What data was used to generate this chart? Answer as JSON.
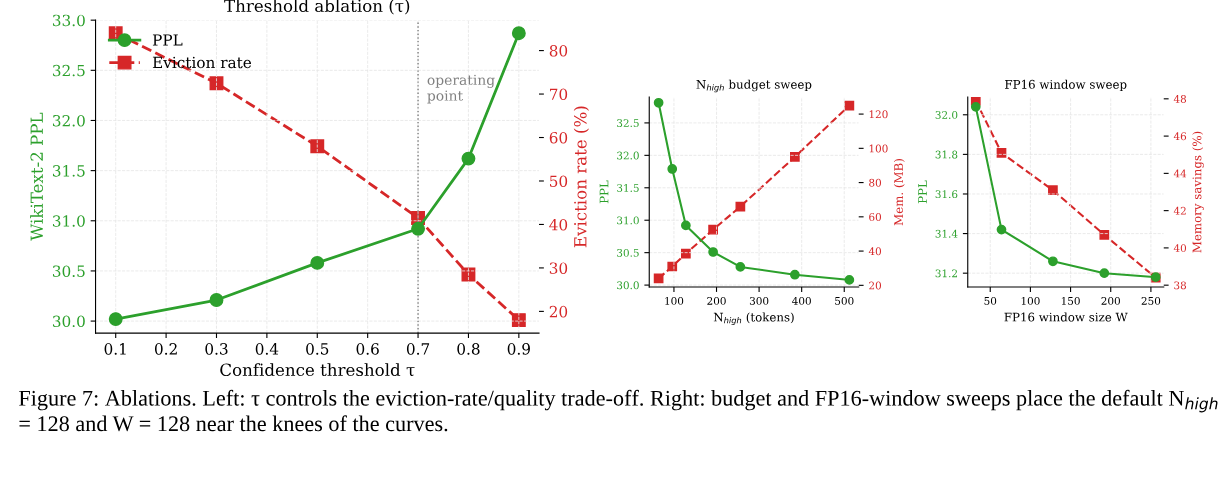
{
  "chart_data": [
    {
      "type": "line",
      "title": "Threshold ablation (τ)",
      "xlabel": "Confidence threshold τ",
      "ylabel": "WikiText-2 PPL",
      "y2label": "Eviction rate (%)",
      "x": [
        0.1,
        0.3,
        0.5,
        0.7,
        0.8,
        0.9
      ],
      "series": [
        {
          "name": "PPL",
          "color": "#2ca02c",
          "values": [
            30.02,
            30.21,
            30.58,
            30.92,
            31.62,
            32.87
          ],
          "marker": "circle",
          "line_style": "solid"
        },
        {
          "name": "Eviction rate",
          "color": "#d62728",
          "values": [
            84,
            72.5,
            58,
            41.5,
            28.5,
            18
          ],
          "axis": "y2",
          "marker": "square",
          "line_style": "dashed"
        }
      ],
      "xlim": [
        0.06,
        0.94
      ],
      "xticks": [
        0.1,
        0.2,
        0.3,
        0.4,
        0.5,
        0.6,
        0.7,
        0.8,
        0.9
      ],
      "ylim": [
        29.88,
        33.0
      ],
      "yticks": [
        {
          "value": 30,
          "label": "30.0"
        },
        30.5,
        {
          "value": 31,
          "label": "31.0"
        },
        31.5,
        {
          "value": 32,
          "label": "32.0"
        },
        32.5,
        {
          "value": 33,
          "label": "33.0"
        }
      ],
      "y2lim": [
        15,
        87
      ],
      "y2ticks": [
        20,
        30,
        40,
        50,
        60,
        70,
        80
      ],
      "ref_lines": [
        {
          "axis": "x",
          "value": 0.7,
          "label": "operating\npoint",
          "color": "#808080",
          "line_style": "dotted"
        }
      ],
      "grid": true,
      "legend": "top left",
      "annotations": [
        "Figure 7: Ablations. Left: τ controls the eviction-rate/quality trade-off. Right: budget and FP16-window sweeps place the default N$_{high}$ = 128 and W = 128 near the knees of the curves."
      ]
    },
    {
      "type": "line",
      "title": "N$_{high}$ budget sweep",
      "xlabel": "N$_{high}$ (tokens)",
      "ylabel": "PPL",
      "y2label": "Mem. (MB)",
      "x": [
        64,
        96,
        128,
        192,
        256,
        384,
        512
      ],
      "series": [
        {
          "color": "#2ca02c",
          "values": [
            32.81,
            31.79,
            30.92,
            30.51,
            30.28,
            30.16,
            30.08
          ],
          "marker": "circle",
          "line_style": "solid"
        },
        {
          "color": "#d62728",
          "values": [
            24,
            31,
            38.5,
            52.5,
            66,
            95,
            125
          ],
          "axis": "y2",
          "marker": "square",
          "line_style": "dashed"
        }
      ],
      "xlim": [
        42,
        534
      ],
      "xticks": [
        100,
        200,
        300,
        400,
        500
      ],
      "ylim": [
        29.97,
        32.9
      ],
      "yticks": [
        {
          "value": 30,
          "label": "30.0"
        },
        30.5,
        {
          "value": 31,
          "label": "31.0"
        },
        31.5,
        {
          "value": 32,
          "label": "32.0"
        },
        32.5
      ],
      "y2lim": [
        19,
        130
      ],
      "y2ticks": [
        20,
        40,
        60,
        80,
        100,
        120
      ],
      "grid": true
    },
    {
      "type": "line",
      "title": "FP16 window sweep",
      "xlabel": "FP16 window size W",
      "ylabel": "PPL",
      "y2label": "Memory savings (%)",
      "x": [
        32,
        64,
        128,
        192,
        256
      ],
      "series": [
        {
          "color": "#2ca02c",
          "values": [
            32.04,
            31.42,
            31.26,
            31.2,
            31.18
          ],
          "marker": "circle",
          "line_style": "solid"
        },
        {
          "color": "#d62728",
          "values": [
            47.9,
            45.1,
            43.1,
            40.7,
            38.4
          ],
          "axis": "y2",
          "marker": "square",
          "line_style": "dashed"
        }
      ],
      "xlim": [
        22,
        266
      ],
      "xticks": [
        50,
        100,
        150,
        200,
        250
      ],
      "ylim": [
        31.13,
        32.09
      ],
      "yticks": [
        31.2,
        31.4,
        31.6,
        31.8,
        {
          "value": 32,
          "label": "32.0"
        }
      ],
      "y2lim": [
        37.9,
        48.1
      ],
      "y2ticks": [
        38,
        40,
        42,
        44,
        46,
        48
      ],
      "grid": true
    }
  ]
}
